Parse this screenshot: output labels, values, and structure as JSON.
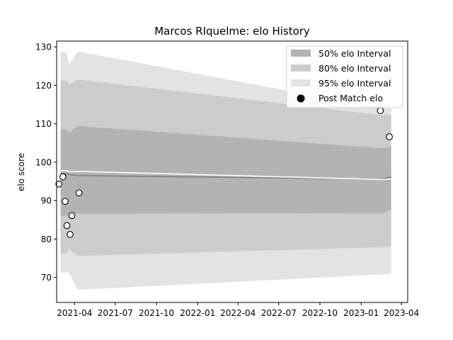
{
  "chart_data": {
    "type": "area",
    "title": "Marcos RIquelme: elo History",
    "xlabel": "",
    "ylabel": "elo score",
    "x_ticks": [
      "2021-04",
      "2021-07",
      "2021-10",
      "2022-01",
      "2022-04",
      "2022-07",
      "2022-10",
      "2023-01",
      "2023-04"
    ],
    "y_ticks": [
      70,
      80,
      90,
      100,
      110,
      120,
      130
    ],
    "xlim": [
      "2021-02-20",
      "2023-04-15"
    ],
    "ylim": [
      63.5,
      131.5
    ],
    "grid": false,
    "legend": {
      "placement": "top-right",
      "entries": [
        "50% elo Interval",
        "80% elo Interval",
        "95% elo Interval",
        "Post Match elo"
      ]
    },
    "band_x": [
      "2021-03-01",
      "2021-03-14",
      "2021-03-20",
      "2021-04-08",
      "2023-02-18",
      "2023-03-09"
    ],
    "median": [
      97.0,
      97.0,
      96.8,
      96.5,
      95.6,
      96.2
    ],
    "mean_line": [
      97.8,
      97.8,
      97.5,
      97.6,
      95.5,
      95.6
    ],
    "series": [
      {
        "name": "95% elo Interval",
        "upper": [
          128.6,
          128.6,
          125.4,
          128.8,
          114.0,
          114.0
        ],
        "lower": [
          71.3,
          71.3,
          71.3,
          66.8,
          70.8,
          71.0
        ]
      },
      {
        "name": "80% elo Interval",
        "upper": [
          121.2,
          121.2,
          120.2,
          121.5,
          112.2,
          112.3
        ],
        "lower": [
          76.2,
          76.2,
          77.4,
          75.6,
          77.9,
          78.0
        ]
      },
      {
        "name": "50% elo Interval",
        "upper": [
          108.5,
          108.5,
          107.6,
          109.4,
          103.6,
          104.0
        ],
        "lower": [
          86.0,
          86.0,
          86.3,
          86.6,
          86.8,
          87.5
        ]
      }
    ],
    "points": [
      {
        "x": "2021-02-25",
        "y": 94.3
      },
      {
        "x": "2021-03-06",
        "y": 96.2
      },
      {
        "x": "2021-03-11",
        "y": 89.8
      },
      {
        "x": "2021-03-15",
        "y": 83.5
      },
      {
        "x": "2021-03-22",
        "y": 81.2
      },
      {
        "x": "2021-03-26",
        "y": 86.1
      },
      {
        "x": "2021-04-11",
        "y": 92.0
      },
      {
        "x": "2023-02-13",
        "y": 113.4
      },
      {
        "x": "2023-03-05",
        "y": 106.6
      }
    ]
  },
  "colors": {
    "band_50": "#b3b3b3",
    "band_80": "#cccccc",
    "band_95": "#e3e3e3",
    "median_line": "#808080",
    "mean_line": "#ffffff",
    "point_edge": "#000000",
    "point_fill": "#ffffff"
  }
}
